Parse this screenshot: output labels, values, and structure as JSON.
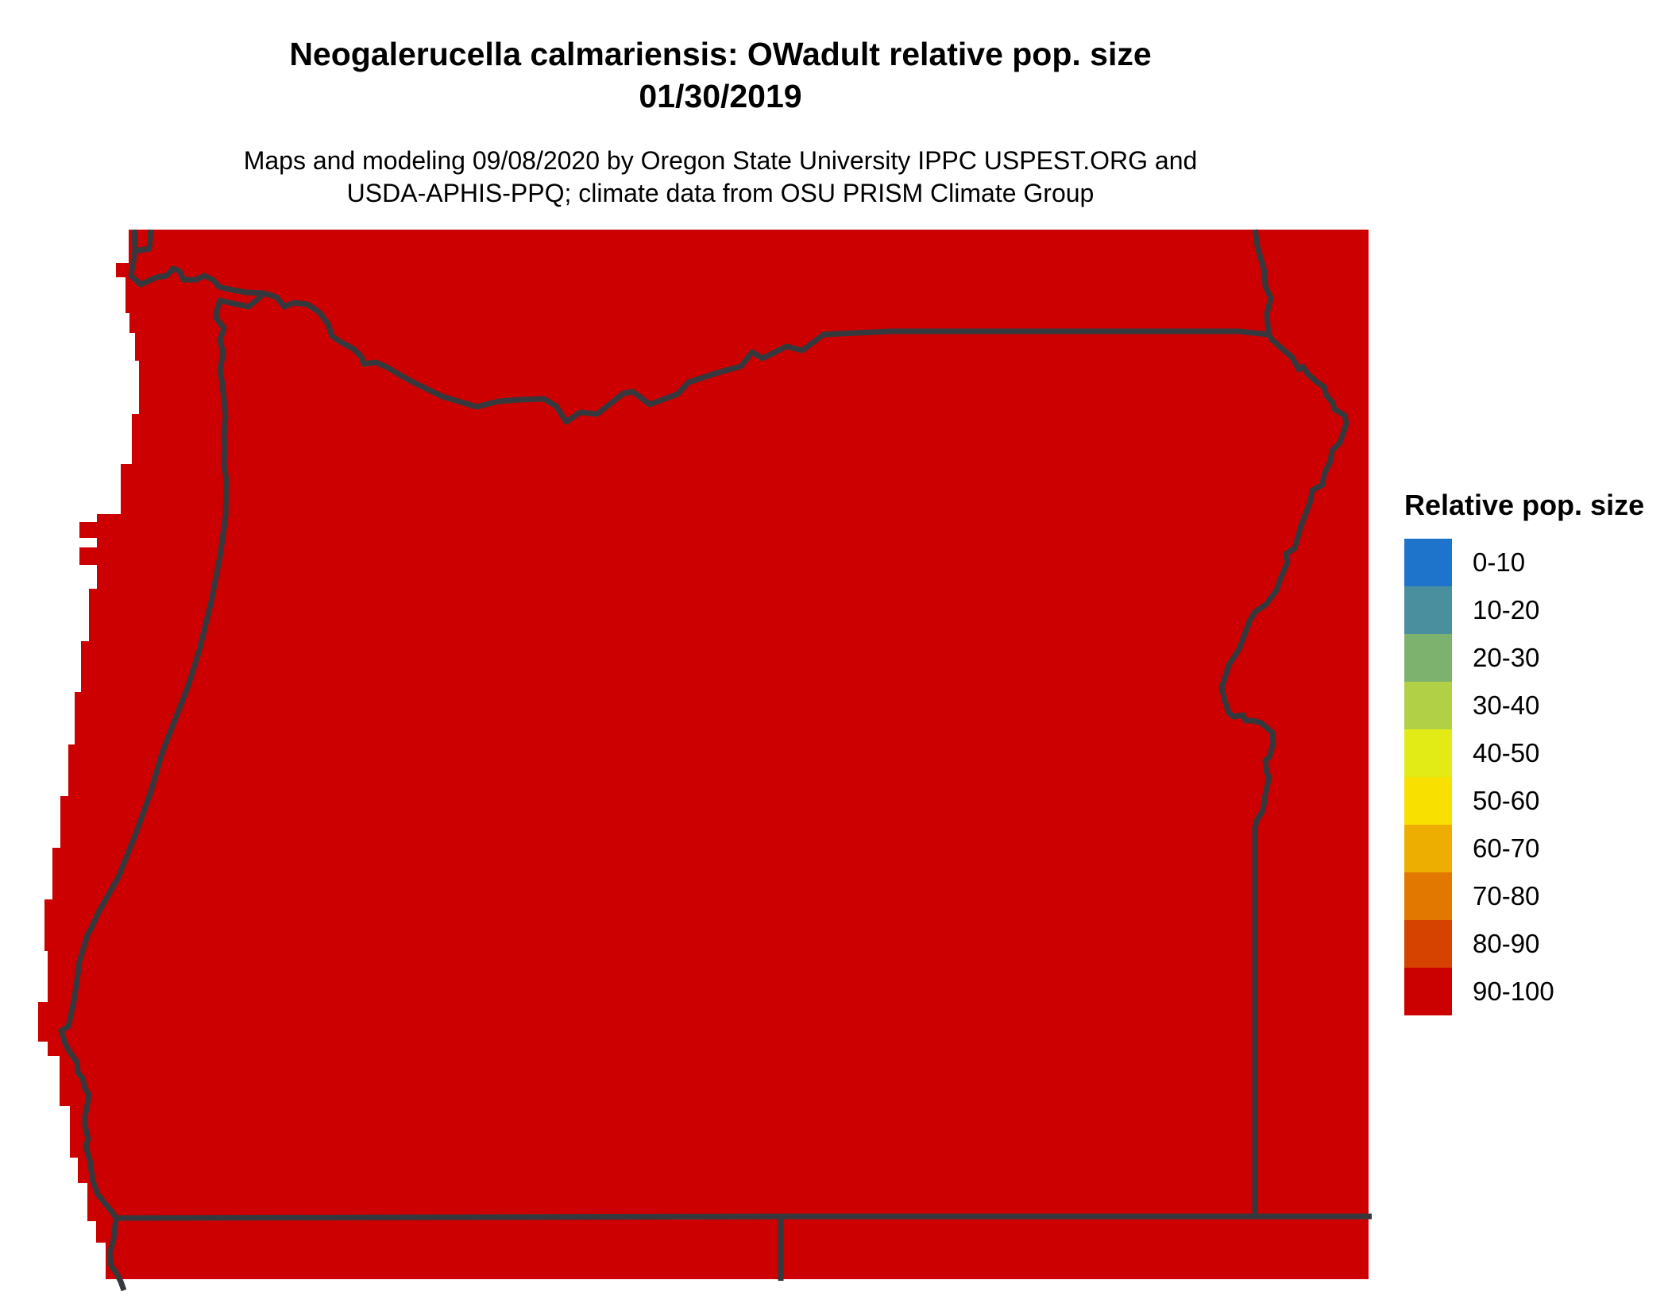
{
  "header": {
    "title_line1": "Neogalerucella calmariensis: OWadult relative pop. size",
    "title_line2": "01/30/2019",
    "subtitle_line1": "Maps and modeling 09/08/2020 by Oregon State University IPPC USPEST.ORG and",
    "subtitle_line2": "USDA-APHIS-PPQ; climate data from OSU PRISM Climate Group"
  },
  "legend": {
    "title": "Relative pop. size",
    "entries": [
      {
        "label": "0-10",
        "color": "#1E74CB"
      },
      {
        "label": "10-20",
        "color": "#4A8F9E"
      },
      {
        "label": "20-30",
        "color": "#7CB16E"
      },
      {
        "label": "30-40",
        "color": "#B2D046"
      },
      {
        "label": "40-50",
        "color": "#E3EB17"
      },
      {
        "label": "50-60",
        "color": "#F8E100"
      },
      {
        "label": "60-70",
        "color": "#EEAD01"
      },
      {
        "label": "70-80",
        "color": "#E27800"
      },
      {
        "label": "80-90",
        "color": "#D64200"
      },
      {
        "label": "90-100",
        "color": "#CB0000"
      }
    ]
  },
  "map": {
    "fill_color": "#CC0000",
    "border_color": "#35393E",
    "background_color": "#FFFFFF",
    "dominant_class": "90-100"
  },
  "chart_data": {
    "type": "choropleth-map",
    "title": "Neogalerucella calmariensis: OWadult relative pop. size 01/30/2019",
    "legend_title": "Relative pop. size",
    "classes": [
      "0-10",
      "10-20",
      "20-30",
      "30-40",
      "40-50",
      "50-60",
      "60-70",
      "70-80",
      "80-90",
      "90-100"
    ],
    "class_colors": [
      "#1E74CB",
      "#4A8F9E",
      "#7CB16E",
      "#B2D046",
      "#E3EB17",
      "#F8E100",
      "#EEAD01",
      "#E27800",
      "#D64200",
      "#CB0000"
    ],
    "observed": "Entire mapped region is displayed in the 90-100 class (solid red); dark lines mark state boundaries (coast, Columbia River north border, Snake River / Idaho east border, straight 42N south border, California-Nevada border)."
  }
}
